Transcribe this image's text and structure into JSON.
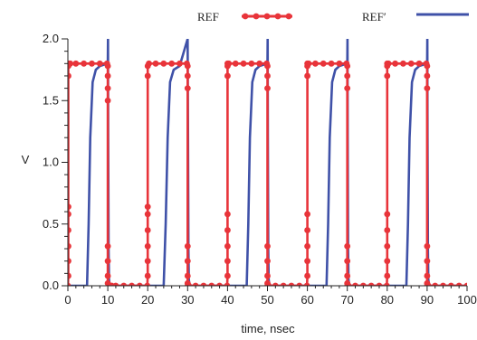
{
  "chart_data": {
    "type": "line",
    "xlabel": "time, nsec",
    "ylabel": "V",
    "xlim": [
      0,
      100
    ],
    "ylim": [
      0,
      2.0
    ],
    "x_ticks": [
      "0",
      "10",
      "20",
      "30",
      "40",
      "50",
      "60",
      "70",
      "80",
      "90",
      "100"
    ],
    "y_ticks": [
      "0.0",
      "0.5",
      "1.0",
      "1.5",
      "2.0"
    ],
    "grid": false,
    "legend_position": "top",
    "series": [
      {
        "name": "REF",
        "color": "#e8343a",
        "marker": "circle",
        "x": [
          0,
          0.1,
          0.1,
          0.1,
          0.1,
          0.1,
          0.1,
          0.1,
          0.1,
          0.3,
          0.6,
          2,
          4,
          6,
          8,
          9.8,
          10,
          10,
          10,
          10,
          10,
          10,
          10,
          10,
          10.3,
          11,
          12,
          14,
          16,
          18,
          19.9,
          20,
          20,
          20,
          20,
          20,
          20,
          20,
          20,
          20.3,
          22,
          24,
          26,
          28,
          29.8,
          30,
          30,
          30,
          30,
          30,
          30,
          30,
          30,
          30.3,
          32,
          34,
          36,
          38,
          39.9,
          40,
          40,
          40,
          40,
          40,
          40,
          40,
          40,
          40.3,
          42,
          44,
          46,
          48,
          49.8,
          50,
          50,
          50,
          50,
          50,
          50,
          50,
          50,
          50.3,
          52,
          54,
          56,
          58,
          59.9,
          60,
          60,
          60,
          60,
          60,
          60,
          60,
          60,
          60.3,
          62,
          64,
          66,
          68,
          69.8,
          70,
          70,
          70,
          70,
          70,
          70,
          70,
          70,
          70.3,
          72,
          74,
          76,
          78,
          79.9,
          80,
          80,
          80,
          80,
          80,
          80,
          80,
          80,
          80.3,
          82,
          84,
          86,
          88,
          89.8,
          90,
          90,
          90,
          90,
          90,
          90,
          90,
          90,
          90.3,
          92,
          94,
          96,
          98,
          100
        ],
        "y": [
          0,
          0.08,
          0.2,
          0.32,
          0.45,
          0.58,
          0.64,
          1.7,
          1.78,
          1.8,
          1.8,
          1.8,
          1.8,
          1.8,
          1.8,
          1.8,
          1.78,
          1.7,
          1.6,
          1.5,
          0.32,
          0.2,
          0.08,
          0.02,
          0,
          0,
          0,
          0,
          0,
          0,
          0,
          0.08,
          0.2,
          0.32,
          0.45,
          0.58,
          0.64,
          1.7,
          1.78,
          1.8,
          1.8,
          1.8,
          1.8,
          1.8,
          1.8,
          1.78,
          1.7,
          1.6,
          0.32,
          0.2,
          0.08,
          0.02,
          0,
          0,
          0,
          0,
          0,
          0,
          0,
          0.08,
          0.2,
          0.32,
          0.45,
          0.58,
          1.7,
          1.78,
          1.8,
          1.8,
          1.8,
          1.8,
          1.8,
          1.8,
          1.8,
          1.78,
          1.7,
          1.6,
          0.32,
          0.2,
          0.08,
          0.02,
          0,
          0,
          0,
          0,
          0,
          0,
          0,
          0.08,
          0.2,
          0.32,
          0.45,
          0.58,
          1.7,
          1.78,
          1.8,
          1.8,
          1.8,
          1.8,
          1.8,
          1.8,
          1.8,
          1.78,
          1.7,
          1.6,
          0.32,
          0.2,
          0.08,
          0.02,
          0,
          0,
          0,
          0,
          0,
          0,
          0,
          0.08,
          0.2,
          0.32,
          0.45,
          0.58,
          1.7,
          1.78,
          1.8,
          1.8,
          1.8,
          1.8,
          1.8,
          1.8,
          1.8,
          1.78,
          1.7,
          1.6,
          0.32,
          0.2,
          0.08,
          0.02,
          0,
          0,
          0,
          0,
          0,
          0,
          0
        ]
      },
      {
        "name": "REF′",
        "color": "#3f51a8",
        "marker": "none",
        "x": [
          0,
          4.8,
          5.2,
          5.6,
          6.2,
          7,
          8,
          10,
          10.05,
          10.1,
          10.2,
          10.3,
          10.5,
          24,
          24.5,
          25,
          25.6,
          26.5,
          28,
          30,
          30.1,
          30.2,
          30.3,
          30.5,
          44.8,
          45.2,
          45.6,
          46.2,
          47,
          48,
          50,
          50.05,
          50.1,
          50.2,
          50.3,
          50.5,
          64.8,
          65.2,
          65.6,
          66.2,
          67,
          68,
          70,
          70.05,
          70.1,
          70.2,
          70.3,
          70.5,
          84.8,
          85.2,
          85.6,
          86.2,
          87,
          88,
          90,
          90.05,
          90.1,
          90.2,
          90.3,
          90.5,
          100
        ],
        "y": [
          0,
          0,
          0.5,
          1.2,
          1.65,
          1.75,
          1.78,
          1.8,
          2.0,
          1.2,
          0.3,
          0.05,
          0,
          0,
          0.5,
          1.2,
          1.65,
          1.75,
          1.78,
          2.0,
          1.2,
          0.3,
          0.05,
          0,
          0,
          0.5,
          1.2,
          1.65,
          1.75,
          1.78,
          1.8,
          2.0,
          1.2,
          0.3,
          0.05,
          0,
          0,
          0.5,
          1.2,
          1.65,
          1.75,
          1.78,
          1.8,
          2.0,
          1.2,
          0.3,
          0.05,
          0,
          0,
          0.5,
          1.2,
          1.65,
          1.75,
          1.78,
          1.8,
          2.0,
          1.2,
          0.3,
          0.05,
          0,
          0
        ]
      }
    ]
  }
}
